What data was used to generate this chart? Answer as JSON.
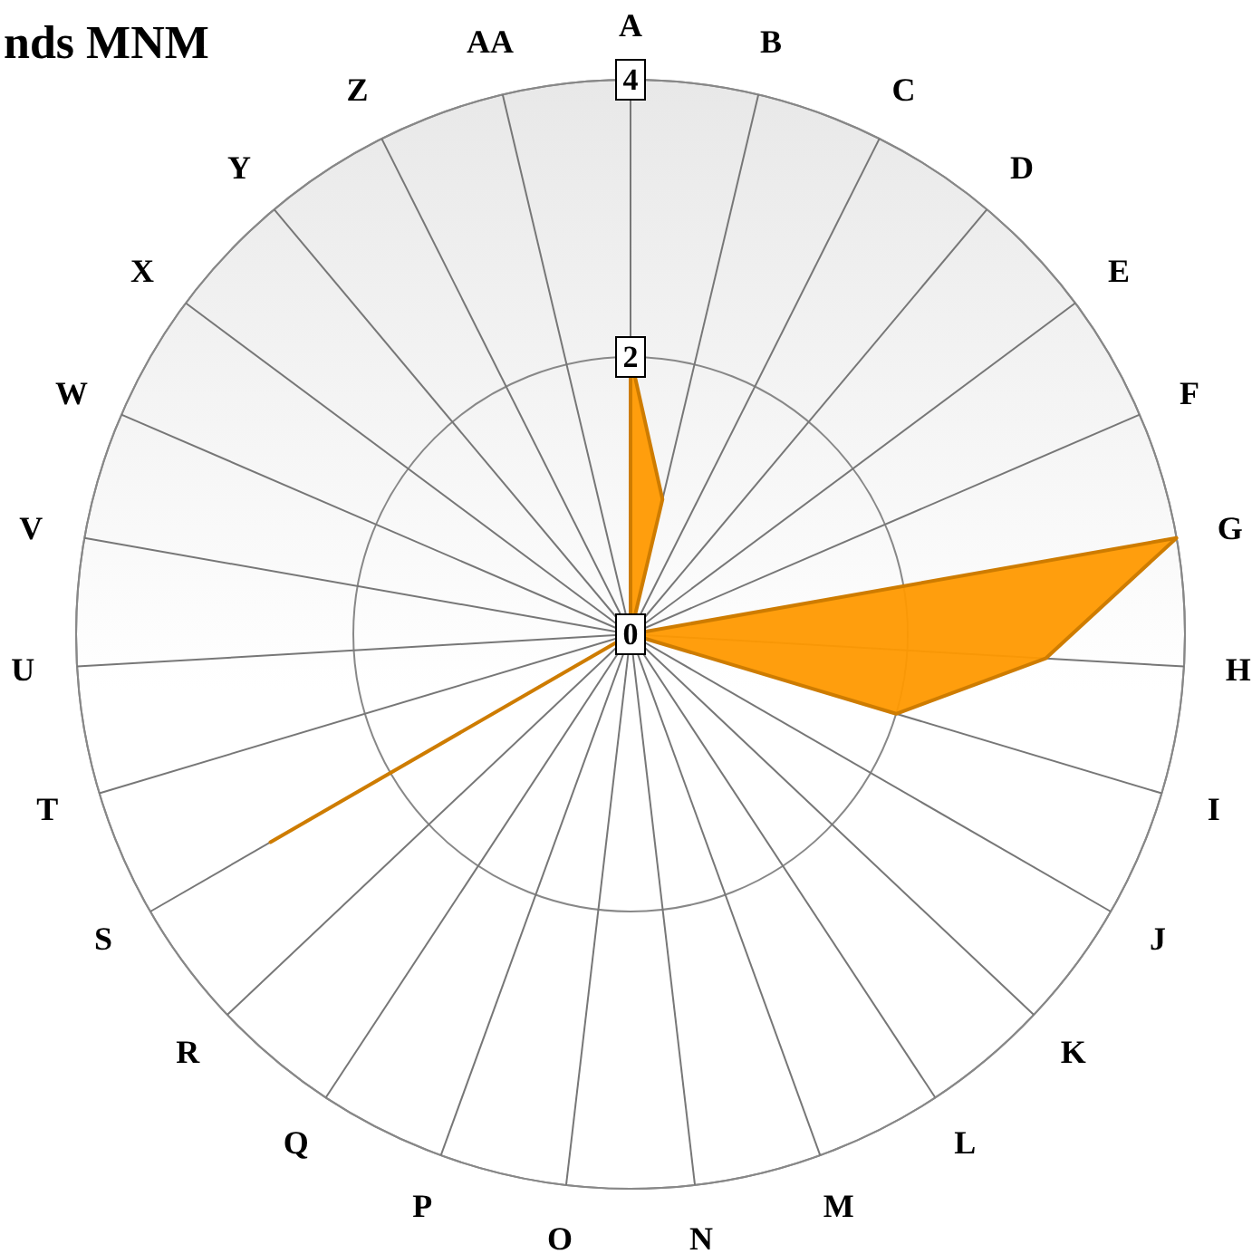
{
  "chart_data": {
    "type": "radar",
    "title": "nds MNM",
    "categories": [
      "A",
      "B",
      "C",
      "D",
      "E",
      "F",
      "G",
      "H",
      "I",
      "J",
      "K",
      "L",
      "M",
      "N",
      "O",
      "P",
      "Q",
      "R",
      "S",
      "T",
      "U",
      "V",
      "W",
      "X",
      "Y",
      "Z",
      "AA"
    ],
    "series": [
      {
        "color": "#ff9900",
        "values": [
          2,
          1,
          0,
          0,
          0,
          0,
          4,
          3,
          2,
          0,
          0,
          0,
          0,
          0,
          0,
          0,
          0,
          0,
          3,
          0,
          0,
          0,
          0,
          0,
          0,
          0,
          0
        ]
      }
    ],
    "ylim": [
      0,
      4
    ],
    "yticks": [
      0,
      2,
      4
    ],
    "grid": true
  }
}
